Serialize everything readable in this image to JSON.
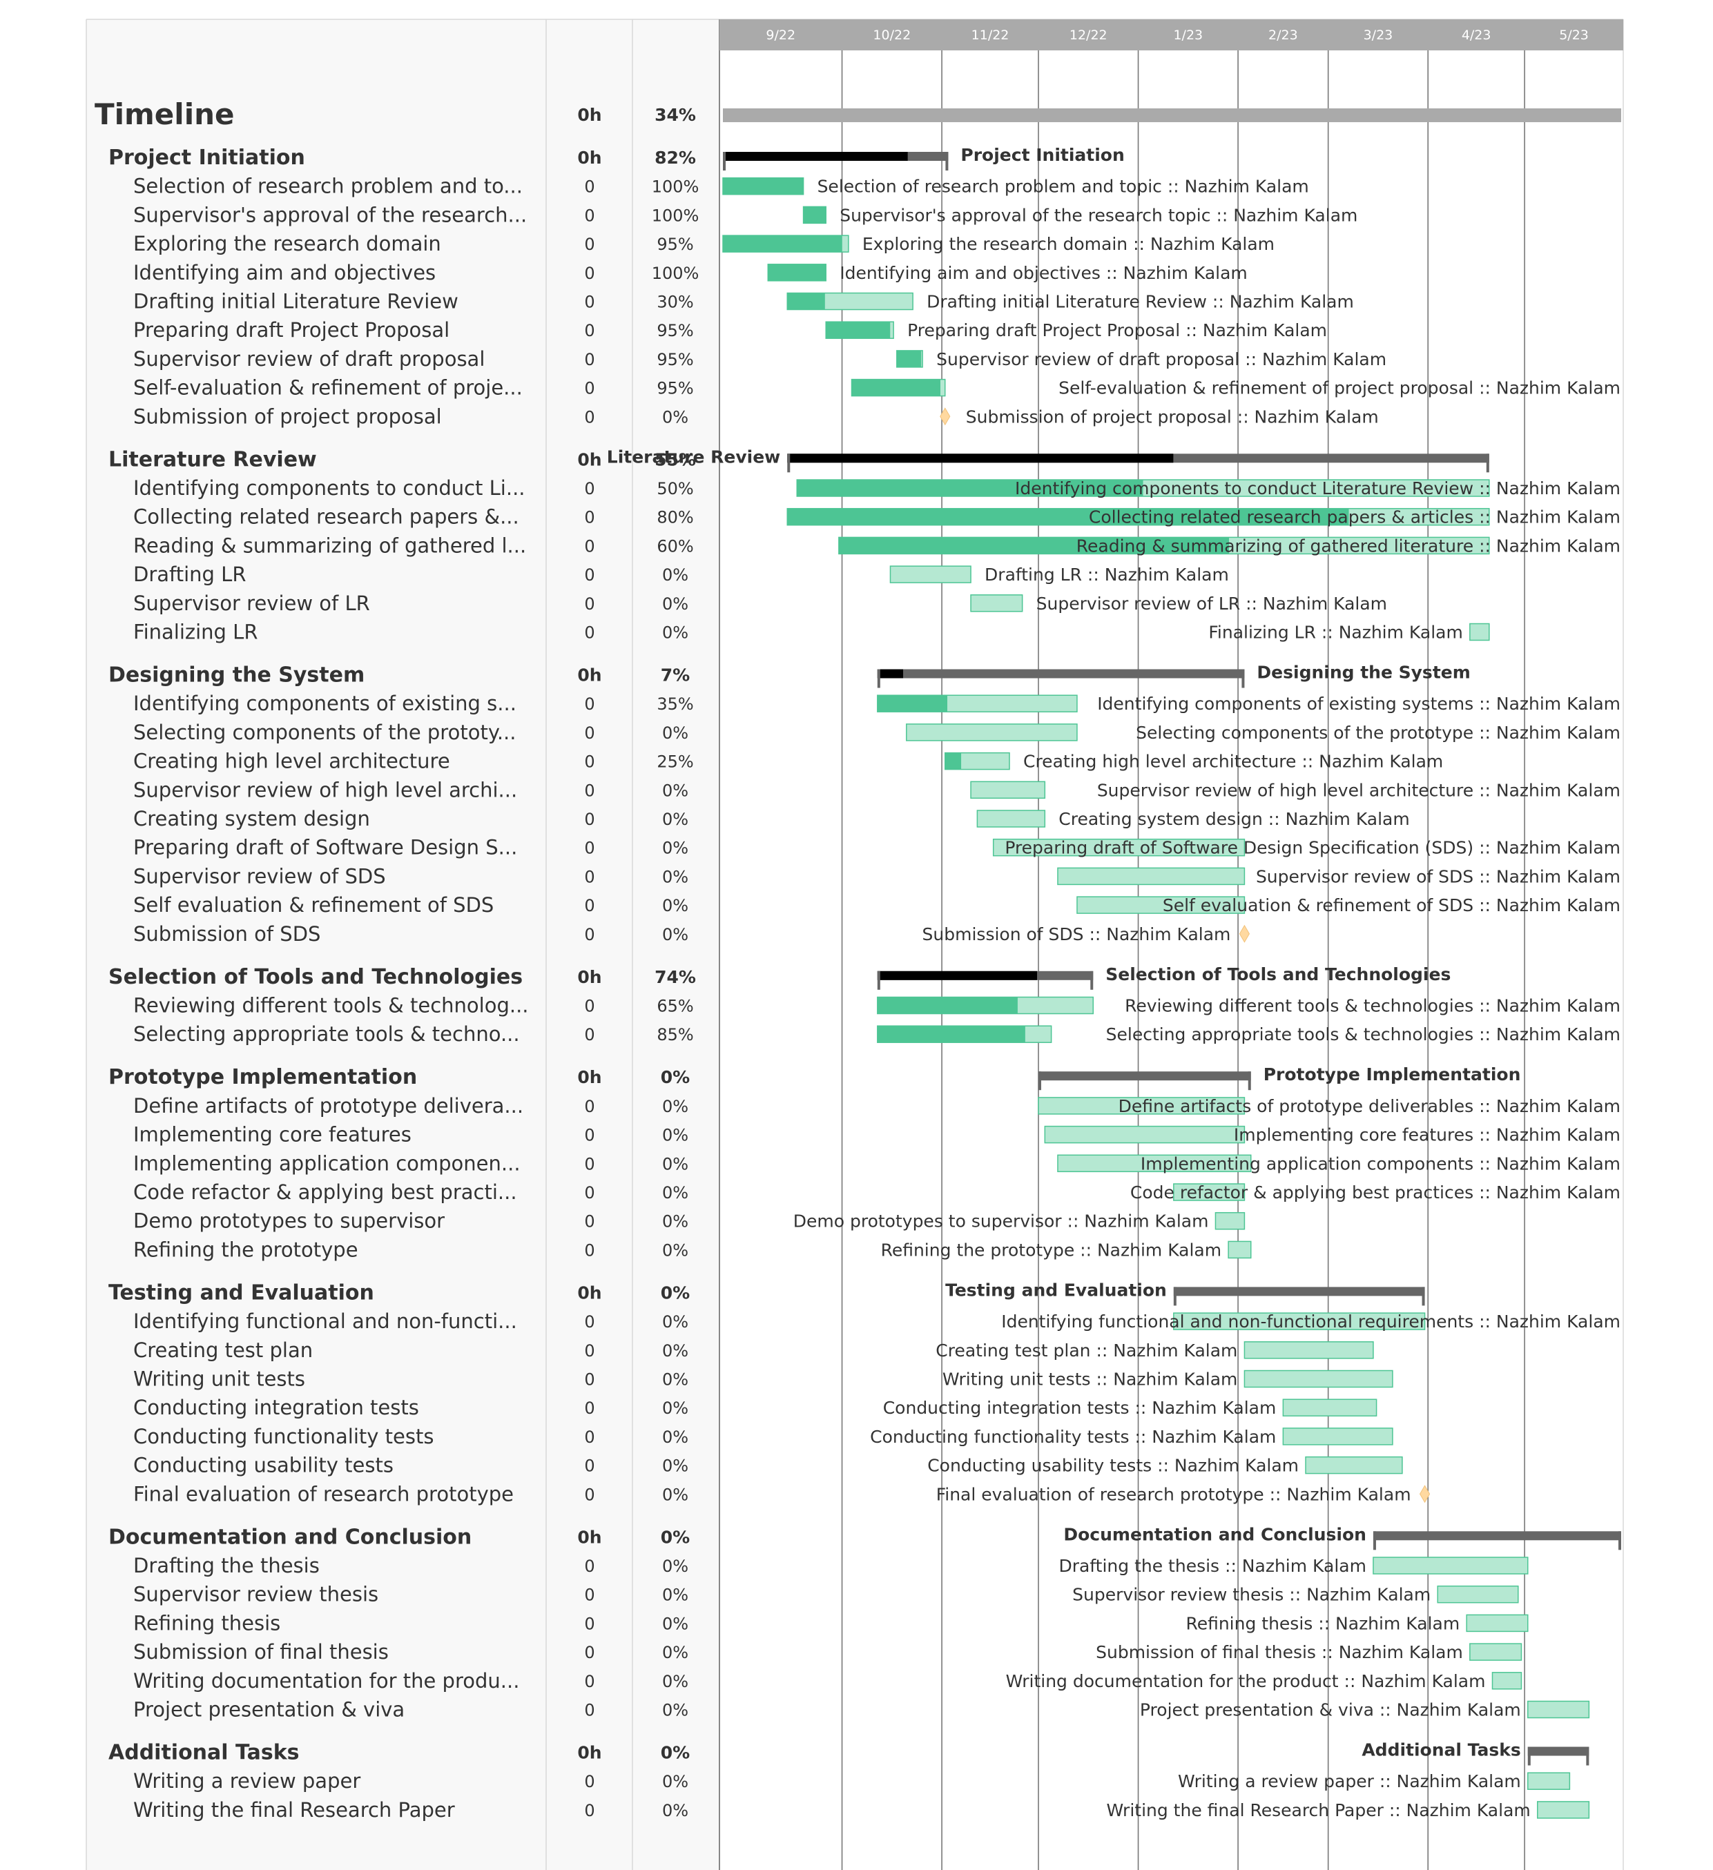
{
  "header": {
    "months": [
      "9/22",
      "10/22",
      "11/22",
      "12/22",
      "1/23",
      "2/23",
      "3/23",
      "4/23",
      "5/23"
    ],
    "assignee": "Nazhim Kalam"
  },
  "colors": {
    "done": "#4dc594",
    "todo": "#b5e8d2",
    "todo_border": "#4dc594",
    "group_bar": "#666666",
    "group_progress": "#000000",
    "timeline_bar": "#aaaaaa",
    "milestone": "#ffd9a0",
    "header": "#aaaaaa"
  },
  "chart_data": {
    "type": "gantt",
    "x_range": [
      "2022-08-25",
      "2023-05-31"
    ],
    "timeline": {
      "name": "Timeline",
      "hours": "0h",
      "percent": "34%",
      "progress": 0.34
    },
    "groups": [
      {
        "name": "Project Initiation",
        "hours": "0h",
        "percent": "82%",
        "progress": 0.82,
        "start": "2022-08-25",
        "end": "2022-11-03",
        "label_side": "right",
        "tasks": [
          {
            "name": "Selection of research problem and to...",
            "label": "Selection of research problem and topic :: Nazhim Kalam",
            "hours": "0",
            "percent": "100%",
            "progress": 1.0,
            "start": "2022-08-25",
            "end": "2022-09-19",
            "label_side": "right"
          },
          {
            "name": "Supervisor's approval of the research...",
            "label": "Supervisor's approval of the research topic :: Nazhim Kalam",
            "hours": "0",
            "percent": "100%",
            "progress": 1.0,
            "start": "2022-09-19",
            "end": "2022-09-26",
            "label_side": "right"
          },
          {
            "name": "Exploring the research domain",
            "label": "Exploring the research domain :: Nazhim Kalam",
            "hours": "0",
            "percent": "95%",
            "progress": 0.95,
            "start": "2022-08-25",
            "end": "2022-10-03",
            "label_side": "right"
          },
          {
            "name": "Identifying aim and objectives",
            "label": "Identifying aim and objectives :: Nazhim Kalam",
            "hours": "0",
            "percent": "100%",
            "progress": 1.0,
            "start": "2022-09-08",
            "end": "2022-09-26",
            "label_side": "right"
          },
          {
            "name": "Drafting initial Literature Review",
            "label": "Drafting initial Literature Review :: Nazhim Kalam",
            "hours": "0",
            "percent": "30%",
            "progress": 0.3,
            "start": "2022-09-14",
            "end": "2022-10-23",
            "label_side": "right"
          },
          {
            "name": "Preparing draft Project Proposal",
            "label": "Preparing draft Project Proposal :: Nazhim Kalam",
            "hours": "0",
            "percent": "95%",
            "progress": 0.95,
            "start": "2022-09-26",
            "end": "2022-10-17",
            "label_side": "right"
          },
          {
            "name": "Supervisor review of draft proposal",
            "label": "Supervisor review of draft proposal :: Nazhim Kalam",
            "hours": "0",
            "percent": "95%",
            "progress": 0.95,
            "start": "2022-10-18",
            "end": "2022-10-26",
            "label_side": "right"
          },
          {
            "name": "Self-evaluation & refinement of proje...",
            "label": "Self-evaluation & refinement of project proposal :: Nazhim Kalam",
            "hours": "0",
            "percent": "95%",
            "progress": 0.95,
            "start": "2022-10-04",
            "end": "2022-11-02",
            "label_side": "right"
          },
          {
            "name": "Submission of project proposal",
            "label": "Submission of project proposal :: Nazhim Kalam",
            "hours": "0",
            "percent": "0%",
            "progress": 0,
            "start": "2022-11-02",
            "milestone": true,
            "label_side": "right"
          }
        ]
      },
      {
        "name": "Literature Review",
        "hours": "0h",
        "percent": "55%",
        "progress": 0.55,
        "start": "2022-09-14",
        "end": "2023-04-20",
        "label_side": "left",
        "tasks": [
          {
            "name": "Identifying components to conduct Li...",
            "label": "Identifying components to conduct Literature Review  :: Nazhim Kalam",
            "hours": "0",
            "percent": "50%",
            "progress": 0.5,
            "start": "2022-09-17",
            "end": "2023-04-20",
            "label_side": "right"
          },
          {
            "name": "Collecting related research papers &...",
            "label": "Collecting related research papers & articles :: Nazhim Kalam",
            "hours": "0",
            "percent": "80%",
            "progress": 0.8,
            "start": "2022-09-14",
            "end": "2023-04-20",
            "label_side": "right"
          },
          {
            "name": "Reading & summarizing of gathered l...",
            "label": "Reading & summarizing of gathered literature :: Nazhim Kalam",
            "hours": "0",
            "percent": "60%",
            "progress": 0.6,
            "start": "2022-09-30",
            "end": "2023-04-20",
            "label_side": "right"
          },
          {
            "name": "Drafting LR",
            "label": "Drafting LR :: Nazhim Kalam",
            "hours": "0",
            "percent": "0%",
            "progress": 0,
            "start": "2022-10-16",
            "end": "2022-11-10",
            "label_side": "right"
          },
          {
            "name": "Supervisor review of LR",
            "label": "Supervisor review of LR :: Nazhim Kalam",
            "hours": "0",
            "percent": "0%",
            "progress": 0,
            "start": "2022-11-10",
            "end": "2022-11-26",
            "label_side": "right"
          },
          {
            "name": "Finalizing LR",
            "label": "Finalizing LR :: Nazhim Kalam",
            "hours": "0",
            "percent": "0%",
            "progress": 0,
            "start": "2023-04-14",
            "end": "2023-04-20",
            "label_side": "left"
          }
        ]
      },
      {
        "name": "Designing the System",
        "hours": "0h",
        "percent": "7%",
        "progress": 0.07,
        "start": "2022-10-12",
        "end": "2023-02-03",
        "label_side": "right",
        "tasks": [
          {
            "name": "Identifying components of existing s...",
            "label": "Identifying components of existing systems :: Nazhim Kalam",
            "hours": "0",
            "percent": "35%",
            "progress": 0.35,
            "start": "2022-10-12",
            "end": "2022-12-13",
            "label_side": "right"
          },
          {
            "name": "Selecting components of the prototy...",
            "label": "Selecting components of the prototype :: Nazhim Kalam",
            "hours": "0",
            "percent": "0%",
            "progress": 0,
            "start": "2022-10-21",
            "end": "2022-12-13",
            "label_side": "right"
          },
          {
            "name": "Creating high level architecture",
            "label": "Creating high level architecture :: Nazhim Kalam",
            "hours": "0",
            "percent": "25%",
            "progress": 0.25,
            "start": "2022-11-02",
            "end": "2022-11-22",
            "label_side": "right"
          },
          {
            "name": "Supervisor review of high level archi...",
            "label": "Supervisor review of high level architecture :: Nazhim Kalam",
            "hours": "0",
            "percent": "0%",
            "progress": 0,
            "start": "2022-11-10",
            "end": "2022-12-03",
            "label_side": "right"
          },
          {
            "name": "Creating system design",
            "label": "Creating system design :: Nazhim Kalam",
            "hours": "0",
            "percent": "0%",
            "progress": 0,
            "start": "2022-11-12",
            "end": "2022-12-03",
            "label_side": "right"
          },
          {
            "name": "Preparing draft of Software Design S...",
            "label": "Preparing draft of Software Design Specification (SDS) :: Nazhim Kalam",
            "hours": "0",
            "percent": "0%",
            "progress": 0,
            "start": "2022-11-17",
            "end": "2023-02-03",
            "label_side": "right"
          },
          {
            "name": "Supervisor review of SDS",
            "label": "Supervisor review of SDS :: Nazhim Kalam",
            "hours": "0",
            "percent": "0%",
            "progress": 0,
            "start": "2022-12-07",
            "end": "2023-02-03",
            "label_side": "right"
          },
          {
            "name": "Self evaluation & refinement of SDS",
            "label": "Self evaluation & refinement of SDS :: Nazhim Kalam",
            "hours": "0",
            "percent": "0%",
            "progress": 0,
            "start": "2022-12-13",
            "end": "2023-02-03",
            "label_side": "right"
          },
          {
            "name": "Submission of SDS",
            "label": "Submission of SDS :: Nazhim Kalam",
            "hours": "0",
            "percent": "0%",
            "progress": 0,
            "start": "2023-02-03",
            "milestone": true,
            "label_side": "left"
          }
        ]
      },
      {
        "name": "Selection of Tools and Technologies",
        "hours": "0h",
        "percent": "74%",
        "progress": 0.74,
        "start": "2022-10-12",
        "end": "2022-12-18",
        "label_side": "right",
        "tasks": [
          {
            "name": "Reviewing different tools & technolog...",
            "label": "Reviewing different tools & technologies :: Nazhim Kalam",
            "hours": "0",
            "percent": "65%",
            "progress": 0.65,
            "start": "2022-10-12",
            "end": "2022-12-18",
            "label_side": "right"
          },
          {
            "name": "Selecting appropriate tools & techno...",
            "label": "Selecting appropriate tools & technologies :: Nazhim Kalam",
            "hours": "0",
            "percent": "85%",
            "progress": 0.85,
            "start": "2022-10-12",
            "end": "2022-12-05",
            "label_side": "right"
          }
        ]
      },
      {
        "name": "Prototype Implementation",
        "hours": "0h",
        "percent": "0%",
        "progress": 0,
        "start": "2022-12-01",
        "end": "2023-02-05",
        "label_side": "right",
        "tasks": [
          {
            "name": "Define artifacts of prototype delivera...",
            "label": "Define artifacts of prototype deliverables :: Nazhim Kalam",
            "hours": "0",
            "percent": "0%",
            "progress": 0,
            "start": "2022-12-01",
            "end": "2023-02-03",
            "label_side": "right"
          },
          {
            "name": "Implementing core features",
            "label": "Implementing core features :: Nazhim Kalam",
            "hours": "0",
            "percent": "0%",
            "progress": 0,
            "start": "2022-12-03",
            "end": "2023-02-03",
            "label_side": "right"
          },
          {
            "name": "Implementing application componen...",
            "label": "Implementing application components :: Nazhim Kalam",
            "hours": "0",
            "percent": "0%",
            "progress": 0,
            "start": "2022-12-07",
            "end": "2023-02-05",
            "label_side": "right"
          },
          {
            "name": "Code refactor & applying best practi...",
            "label": "Code refactor & applying best practices :: Nazhim Kalam",
            "hours": "0",
            "percent": "0%",
            "progress": 0,
            "start": "2023-01-12",
            "end": "2023-02-03",
            "label_side": "right"
          },
          {
            "name": "Demo prototypes to supervisor",
            "label": "Demo prototypes to supervisor :: Nazhim Kalam",
            "hours": "0",
            "percent": "0%",
            "progress": 0,
            "start": "2023-01-25",
            "end": "2023-02-03",
            "label_side": "left"
          },
          {
            "name": "Refining the prototype",
            "label": "Refining the prototype :: Nazhim Kalam",
            "hours": "0",
            "percent": "0%",
            "progress": 0,
            "start": "2023-01-29",
            "end": "2023-02-05",
            "label_side": "left"
          }
        ]
      },
      {
        "name": "Testing and Evaluation",
        "hours": "0h",
        "percent": "0%",
        "progress": 0,
        "start": "2023-01-12",
        "end": "2023-03-31",
        "label_side": "left",
        "tasks": [
          {
            "name": "Identifying functional and non-functi...",
            "label": "Identifying functional and non-functional requirements :: Nazhim Kalam",
            "hours": "0",
            "percent": "0%",
            "progress": 0,
            "start": "2023-01-12",
            "end": "2023-03-31",
            "label_side": "right"
          },
          {
            "name": "Creating test plan",
            "label": "Creating test plan :: Nazhim Kalam",
            "hours": "0",
            "percent": "0%",
            "progress": 0,
            "start": "2023-02-03",
            "end": "2023-03-15",
            "label_side": "left"
          },
          {
            "name": "Writing unit tests",
            "label": "Writing unit tests :: Nazhim Kalam",
            "hours": "0",
            "percent": "0%",
            "progress": 0,
            "start": "2023-02-03",
            "end": "2023-03-21",
            "label_side": "left"
          },
          {
            "name": "Conducting integration tests",
            "label": "Conducting integration tests :: Nazhim Kalam",
            "hours": "0",
            "percent": "0%",
            "progress": 0,
            "start": "2023-02-15",
            "end": "2023-03-16",
            "label_side": "left"
          },
          {
            "name": "Conducting functionality tests",
            "label": "Conducting functionality tests :: Nazhim Kalam",
            "hours": "0",
            "percent": "0%",
            "progress": 0,
            "start": "2023-02-15",
            "end": "2023-03-21",
            "label_side": "left"
          },
          {
            "name": "Conducting usability tests",
            "label": "Conducting usability tests :: Nazhim Kalam",
            "hours": "0",
            "percent": "0%",
            "progress": 0,
            "start": "2023-02-22",
            "end": "2023-03-24",
            "label_side": "left"
          },
          {
            "name": "Final evaluation of research prototype",
            "label": "Final evaluation of research prototype :: Nazhim Kalam",
            "hours": "0",
            "percent": "0%",
            "progress": 0,
            "start": "2023-03-31",
            "milestone": true,
            "label_side": "left"
          }
        ]
      },
      {
        "name": "Documentation and Conclusion",
        "hours": "0h",
        "percent": "0%",
        "progress": 0,
        "start": "2023-03-15",
        "end": "2023-05-31",
        "label_side": "left",
        "tasks": [
          {
            "name": "Drafting the thesis",
            "label": "Drafting the thesis :: Nazhim Kalam",
            "hours": "0",
            "percent": "0%",
            "progress": 0,
            "start": "2023-03-15",
            "end": "2023-05-02",
            "label_side": "left"
          },
          {
            "name": "Supervisor review thesis",
            "label": "Supervisor review thesis :: Nazhim Kalam",
            "hours": "0",
            "percent": "0%",
            "progress": 0,
            "start": "2023-04-04",
            "end": "2023-04-29",
            "label_side": "left"
          },
          {
            "name": "Refining thesis",
            "label": "Refining thesis :: Nazhim Kalam",
            "hours": "0",
            "percent": "0%",
            "progress": 0,
            "start": "2023-04-13",
            "end": "2023-05-02",
            "label_side": "left"
          },
          {
            "name": "Submission of final thesis",
            "label": "Submission of final thesis :: Nazhim Kalam",
            "hours": "0",
            "percent": "0%",
            "progress": 0,
            "start": "2023-04-14",
            "end": "2023-04-30",
            "label_side": "left"
          },
          {
            "name": "Writing documentation for the produ...",
            "label": "Writing documentation for the product :: Nazhim Kalam",
            "hours": "0",
            "percent": "0%",
            "progress": 0,
            "start": "2023-04-21",
            "end": "2023-04-30",
            "label_side": "left"
          },
          {
            "name": "Project presentation & viva",
            "label": "Project presentation & viva :: Nazhim Kalam",
            "hours": "0",
            "percent": "0%",
            "progress": 0,
            "start": "2023-05-02",
            "end": "2023-05-21",
            "label_side": "left"
          }
        ]
      },
      {
        "name": "Additional Tasks",
        "hours": "0h",
        "percent": "0%",
        "progress": 0,
        "start": "2023-05-02",
        "end": "2023-05-21",
        "label_side": "left",
        "tasks": [
          {
            "name": "Writing a review paper",
            "label": "Writing a review paper :: Nazhim Kalam",
            "hours": "0",
            "percent": "0%",
            "progress": 0,
            "start": "2023-05-02",
            "end": "2023-05-15",
            "label_side": "left"
          },
          {
            "name": "Writing the final Research Paper",
            "label": "Writing the final Research Paper :: Nazhim Kalam",
            "hours": "0",
            "percent": "0%",
            "progress": 0,
            "start": "2023-05-05",
            "end": "2023-05-21",
            "label_side": "left"
          }
        ]
      }
    ]
  }
}
